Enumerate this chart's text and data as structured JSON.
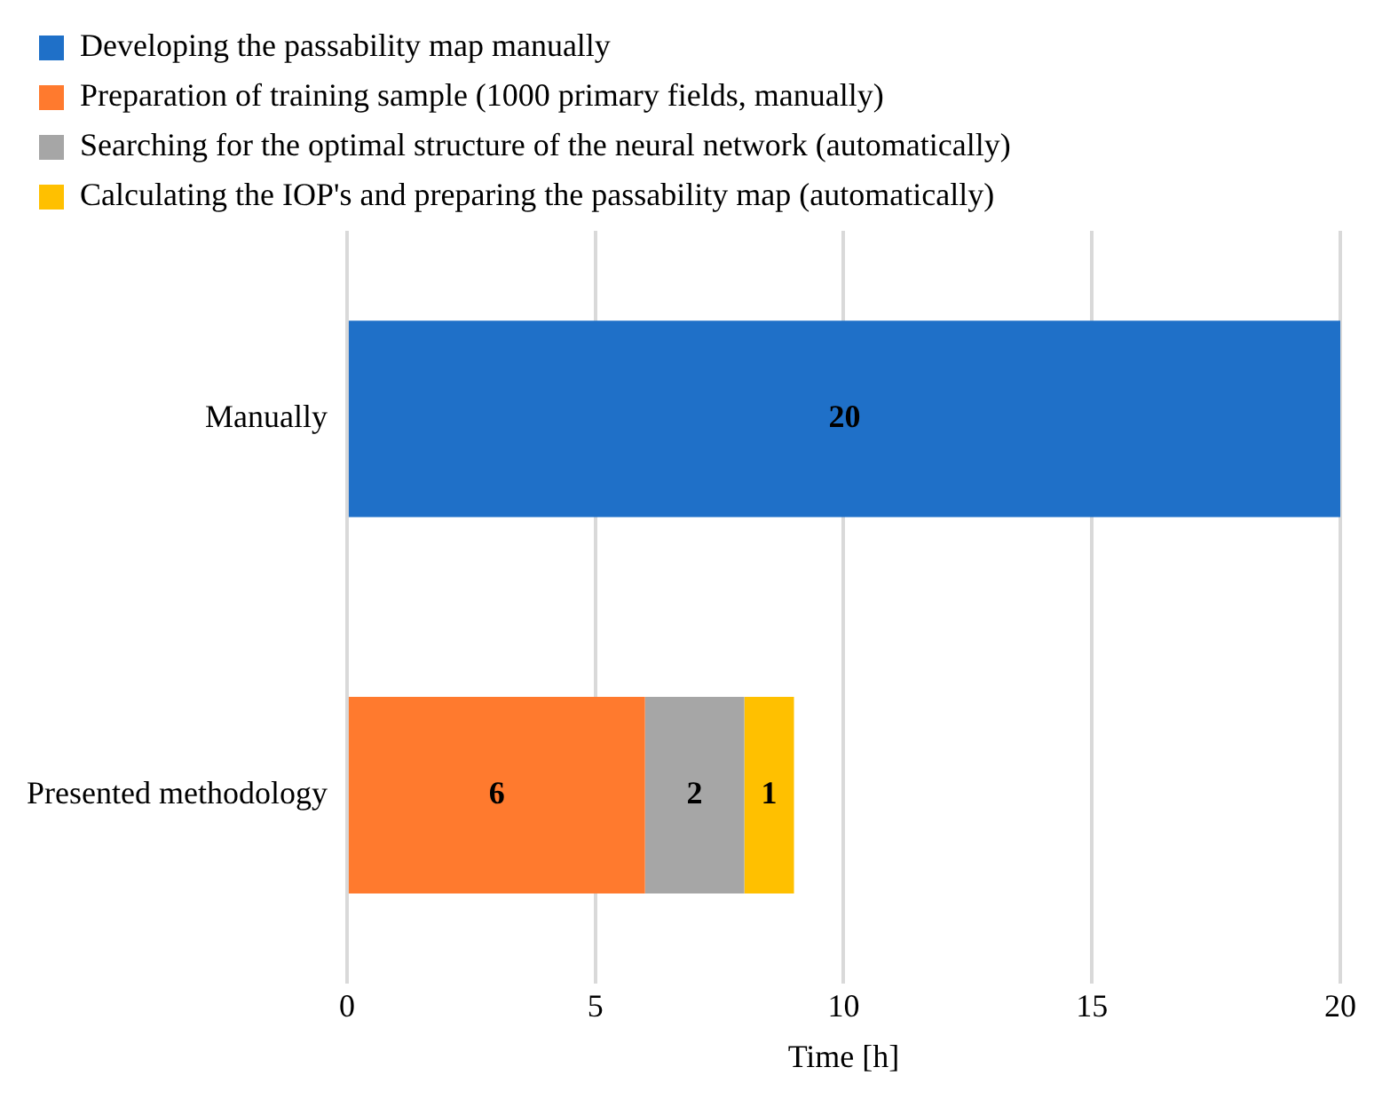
{
  "chart_data": {
    "type": "bar",
    "orientation": "horizontal",
    "stacked": true,
    "xlabel": "Time [h]",
    "categories": [
      "Manually",
      "Presented methodology"
    ],
    "series": [
      {
        "name": "Developing the passability map manually",
        "color": "#1f70c8",
        "values": [
          20,
          null
        ]
      },
      {
        "name": "Preparation of training sample (1000 primary fields, manually)",
        "color": "#ff7a2e",
        "values": [
          null,
          6
        ]
      },
      {
        "name": "Searching for the optimal structure of the neural network (automatically)",
        "color": "#a6a6a6",
        "values": [
          null,
          2
        ]
      },
      {
        "name": "Calculating the IOP's and preparing the passability map (automatically)",
        "color": "#ffc000",
        "values": [
          null,
          1
        ]
      }
    ],
    "xlim": [
      0,
      20
    ],
    "xticks": [
      0,
      5,
      10,
      15,
      20
    ],
    "grid": "x",
    "legend": "top left",
    "data_labels": true
  }
}
